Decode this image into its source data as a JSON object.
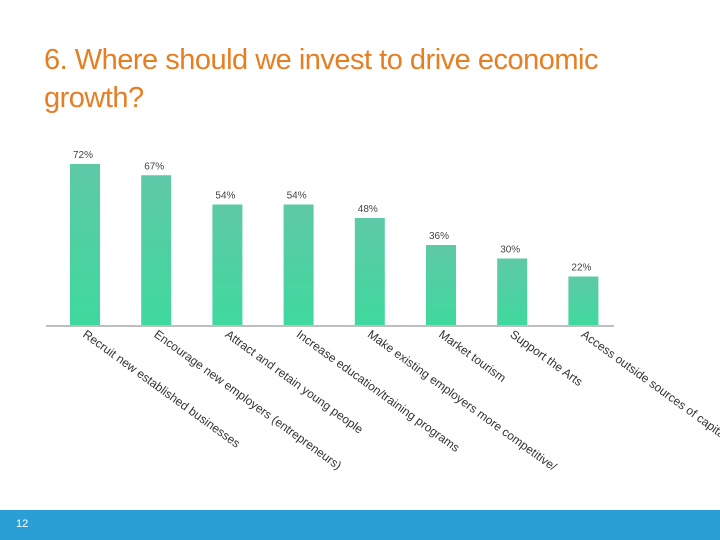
{
  "slide": {
    "title": "6. Where should we invest to drive economic growth?",
    "page_number": "12"
  },
  "colors": {
    "title": "#e67e22",
    "bar_top": "#5ec9a6",
    "bar_bottom": "#3fd99e",
    "footer": "#2a9fd6",
    "axis": "#bfbfbf"
  },
  "chart_data": {
    "type": "bar",
    "title": "",
    "xlabel": "",
    "ylabel": "",
    "ylim": [
      0,
      100
    ],
    "grid": false,
    "categories": [
      "Recruit new established businesses",
      "Encourage new employers (entrepreneurs)",
      "Attract and retain young people",
      "Increase education/training programs",
      "Make existing employers more competitive/",
      "Market tourism",
      "Support the Arts",
      "Access outside sources of capital"
    ],
    "values": [
      72,
      67,
      54,
      54,
      48,
      36,
      30,
      22
    ],
    "data_labels": [
      "72%",
      "67%",
      "54%",
      "54%",
      "48%",
      "36%",
      "30%",
      "22%"
    ]
  }
}
